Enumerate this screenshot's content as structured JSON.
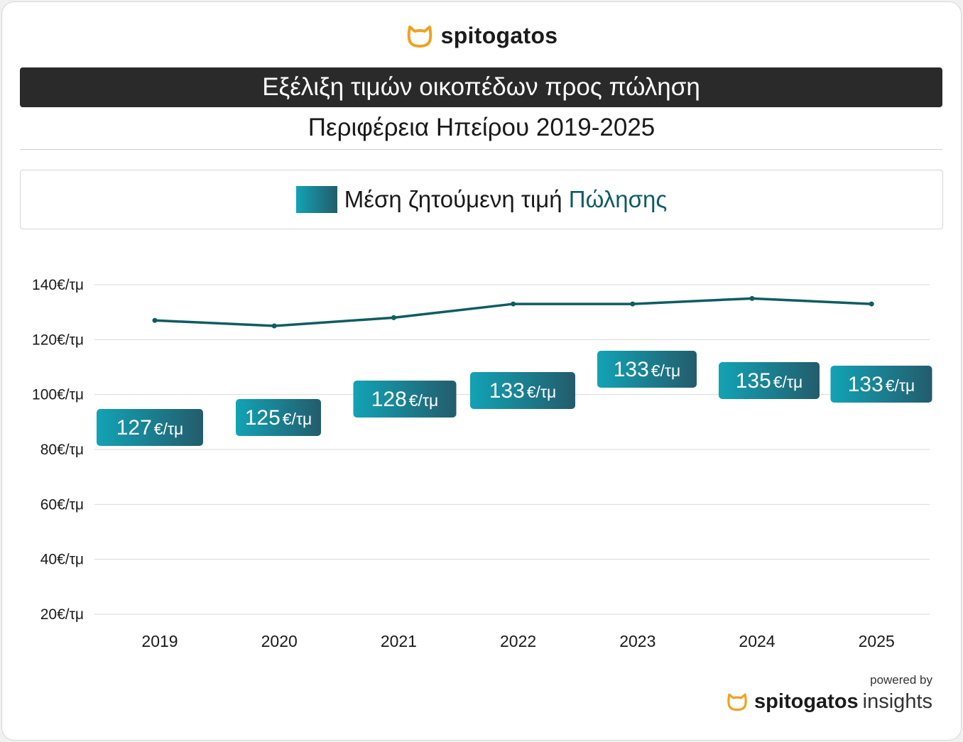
{
  "brand": {
    "name": "spitogatos",
    "logo_icon": "cat-head-icon",
    "logo_color": "#f0a020"
  },
  "header": {
    "title": "Εξέλιξη τιμών οικοπέδων προς πώληση",
    "subtitle": "Περιφέρεια Ηπείρου 2019-2025"
  },
  "legend": {
    "text": "Μέση ζητούμενη τιμή",
    "accent": "Πώλησης"
  },
  "footer": {
    "powered_by": "powered by",
    "brand": "spitogatos",
    "product": "insights"
  },
  "colors": {
    "line": "#0f5c63",
    "label_start": "#12a3b5",
    "label_end": "#235c6c",
    "title_bar": "#2a2a2a"
  },
  "chart_data": {
    "type": "line",
    "categories": [
      "2019",
      "2020",
      "2021",
      "2022",
      "2023",
      "2024",
      "2025"
    ],
    "series": [
      {
        "values": [
          127,
          125,
          128,
          133,
          133,
          135,
          133
        ]
      }
    ],
    "y_ticks": [
      "20€/τμ",
      "40€/τμ",
      "60€/τμ",
      "80€/τμ",
      "100€/τμ",
      "120€/τμ",
      "140€/τμ"
    ],
    "y_tick_values": [
      20,
      40,
      60,
      80,
      100,
      120,
      140
    ],
    "data_labels": [
      {
        "value": "127",
        "unit": "€/τμ"
      },
      {
        "value": "125",
        "unit": "€/τμ"
      },
      {
        "value": "128",
        "unit": "€/τμ"
      },
      {
        "value": "133",
        "unit": "€/τμ"
      },
      {
        "value": "133",
        "unit": "€/τμ"
      },
      {
        "value": "135",
        "unit": "€/τμ"
      },
      {
        "value": "133",
        "unit": "€/τμ"
      }
    ],
    "ylim": [
      20,
      140
    ],
    "grid": true
  }
}
